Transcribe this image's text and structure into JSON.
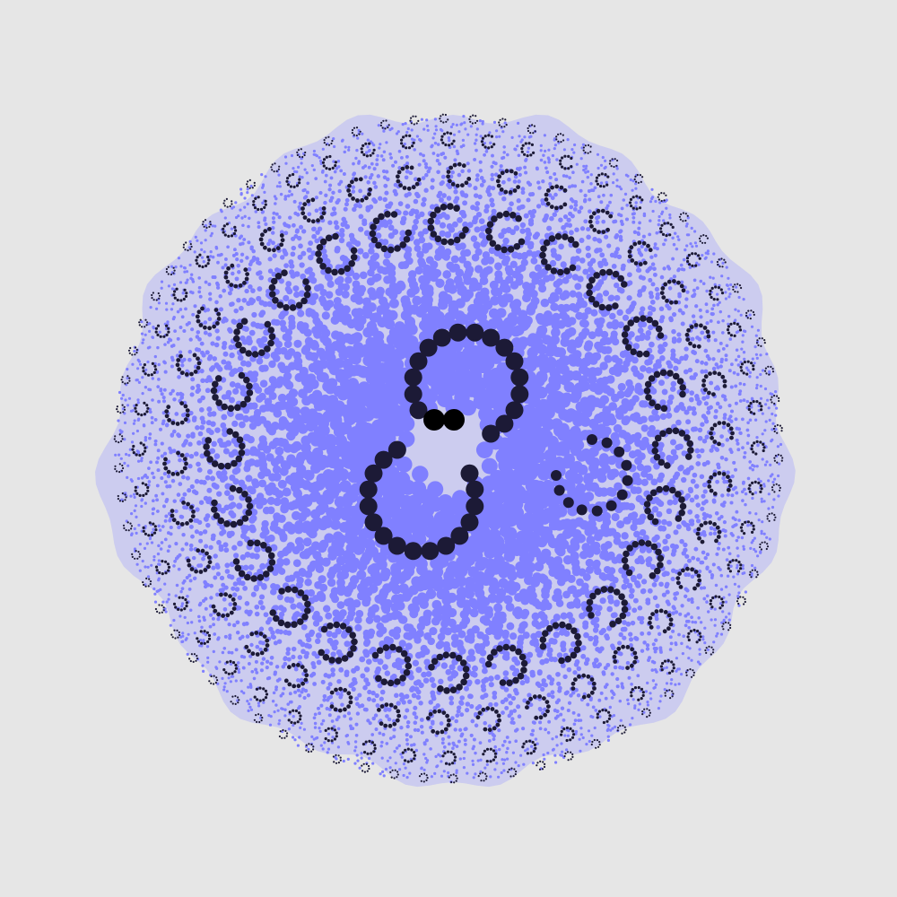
{
  "artwork": {
    "subject": "circle-packing-spiral-pattern",
    "colors": {
      "background": "#e6e6e6",
      "dots": "#8080ff",
      "accent": "#1c1a36",
      "core": "#000000"
    }
  }
}
